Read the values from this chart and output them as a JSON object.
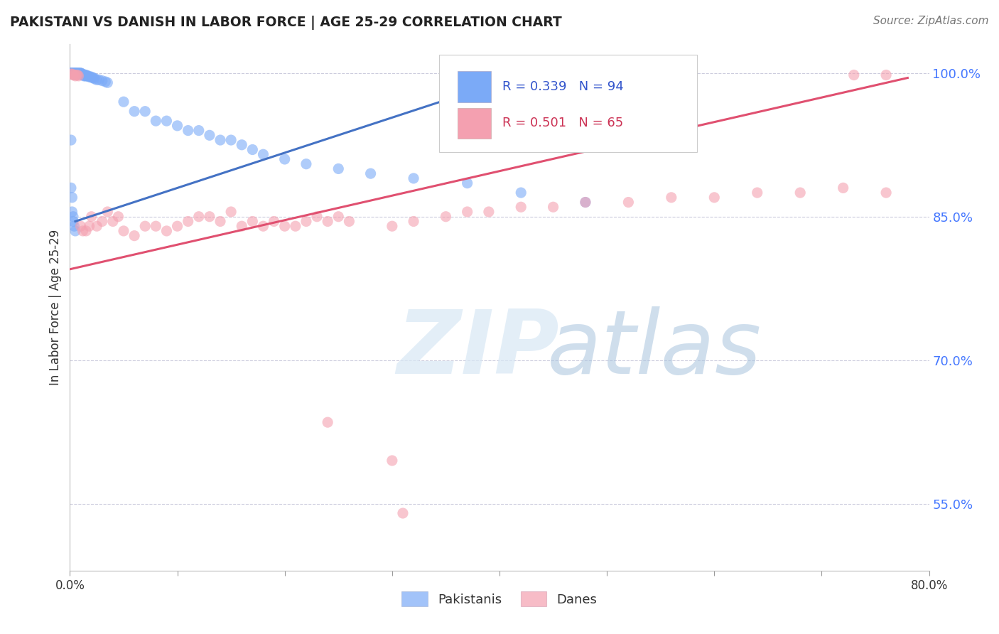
{
  "title": "PAKISTANI VS DANISH IN LABOR FORCE | AGE 25-29 CORRELATION CHART",
  "source": "Source: ZipAtlas.com",
  "ylabel": "In Labor Force | Age 25-29",
  "xlim": [
    0.0,
    0.8
  ],
  "ylim": [
    0.48,
    1.03
  ],
  "yticks": [
    0.55,
    0.7,
    0.85,
    1.0
  ],
  "yticklabels": [
    "55.0%",
    "70.0%",
    "85.0%",
    "100.0%"
  ],
  "blue_color": "#7BAAF7",
  "pink_color": "#F4A0B0",
  "blue_line_color": "#4472C4",
  "pink_line_color": "#E05070",
  "grid_color": "#CCCCDD",
  "R_blue": 0.339,
  "N_blue": 94,
  "R_pink": 0.501,
  "N_pink": 65,
  "legend_label_blue": "Pakistanis",
  "legend_label_pink": "Danes",
  "blue_line_x0": 0.005,
  "blue_line_y0": 0.845,
  "blue_line_x1": 0.44,
  "blue_line_y1": 1.005,
  "pink_line_x0": 0.0,
  "pink_line_y0": 0.795,
  "pink_line_x1": 0.78,
  "pink_line_y1": 0.995
}
